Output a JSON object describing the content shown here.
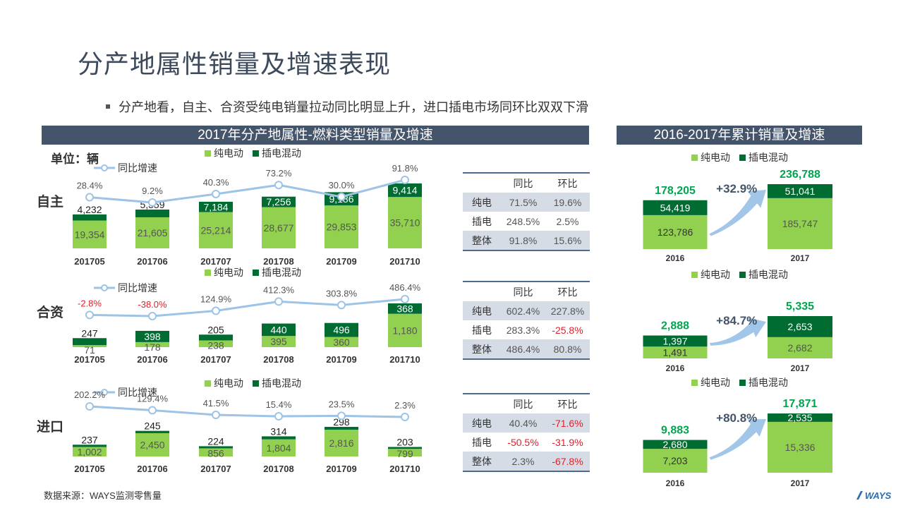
{
  "title": "分产地属性销量及增速表现",
  "bullet": "分产地看，自主、合资受纯电销量拉动同比明显上升，进口插电市场同环比双双下滑",
  "left_header": "2017年分产地属性-燃料类型销量及增速",
  "right_header": "2016-2017年累计销量及增速",
  "unit_label": "单位：辆",
  "legend": {
    "bev": "纯电动",
    "phev": "插电混动",
    "yoy": "同比增速"
  },
  "source": "数据来源：WAYS监测零售量",
  "logo": "WAYS",
  "colors": {
    "bev": "#92d050",
    "phev": "#006c31",
    "line": "#9dc3e6",
    "header": "#44546a",
    "growth": "#00a64f",
    "neg": "#e0202a"
  },
  "chart_data": [
    {
      "type": "bar",
      "region": "自主",
      "stacked": true,
      "categories": [
        "201705",
        "201706",
        "201707",
        "201708",
        "201709",
        "201710"
      ],
      "series": [
        {
          "name": "纯电动",
          "values": [
            19354,
            21605,
            25214,
            28677,
            29853,
            35710
          ],
          "labels": [
            "19,354",
            "21,605",
            "25,214",
            "28,677",
            "29,853",
            "35,710"
          ]
        },
        {
          "name": "插电混动",
          "values": [
            4232,
            5359,
            7184,
            7256,
            9186,
            9414
          ],
          "labels": [
            "4,232",
            "5,359",
            "7,184",
            "7,256",
            "9,186",
            "9,414"
          ]
        }
      ],
      "line": {
        "name": "同比增速",
        "values": [
          28.4,
          9.2,
          40.3,
          73.2,
          30.0,
          91.8
        ],
        "labels": [
          "28.4%",
          "9.2%",
          "40.3%",
          "73.2%",
          "30.0%",
          "91.8%"
        ]
      }
    },
    {
      "type": "bar",
      "region": "合资",
      "stacked": true,
      "categories": [
        "201705",
        "201706",
        "201707",
        "201708",
        "201709",
        "201710"
      ],
      "series": [
        {
          "name": "纯电动",
          "values": [
            71,
            178,
            238,
            395,
            360,
            1180
          ],
          "labels": [
            "71",
            "178",
            "238",
            "395",
            "360",
            "1,180"
          ]
        },
        {
          "name": "插电混动",
          "values": [
            247,
            398,
            205,
            440,
            496,
            368
          ],
          "labels": [
            "247",
            "398",
            "205",
            "440",
            "496",
            "368"
          ]
        }
      ],
      "line": {
        "name": "同比增速",
        "values": [
          -2.8,
          -38.0,
          124.9,
          412.3,
          303.8,
          486.4
        ],
        "labels": [
          "-2.8%",
          "-38.0%",
          "124.9%",
          "412.3%",
          "303.8%",
          "486.4%"
        ]
      }
    },
    {
      "type": "bar",
      "region": "进口",
      "stacked": true,
      "categories": [
        "201705",
        "201706",
        "201707",
        "201708",
        "201709",
        "201710"
      ],
      "series": [
        {
          "name": "纯电动",
          "values": [
            1002,
            2450,
            856,
            1804,
            2816,
            799
          ],
          "labels": [
            "1,002",
            "2,450",
            "856",
            "1,804",
            "2,816",
            "799"
          ]
        },
        {
          "name": "插电混动",
          "values": [
            237,
            245,
            224,
            314,
            298,
            203
          ],
          "labels": [
            "237",
            "245",
            "224",
            "314",
            "298",
            "203"
          ]
        }
      ],
      "line": {
        "name": "同比增速",
        "values": [
          202.2,
          129.4,
          41.5,
          15.4,
          23.5,
          2.3
        ],
        "labels": [
          "202.2%",
          "129.4%",
          "41.5%",
          "15.4%",
          "23.5%",
          "2.3%"
        ]
      }
    },
    {
      "type": "bar",
      "region": "自主",
      "stacked": true,
      "categories": [
        "2016",
        "2017"
      ],
      "series": [
        {
          "name": "纯电动",
          "values": [
            123786,
            185747
          ],
          "labels": [
            "123,786",
            "185,747"
          ]
        },
        {
          "name": "插电混动",
          "values": [
            54419,
            51041
          ],
          "labels": [
            "54,419",
            "51,041"
          ]
        }
      ],
      "totals": [
        "178,205",
        "236,788"
      ],
      "growth": "+32.9%"
    },
    {
      "type": "bar",
      "region": "合资",
      "stacked": true,
      "categories": [
        "2016",
        "2017"
      ],
      "series": [
        {
          "name": "纯电动",
          "values": [
            1491,
            2682
          ],
          "labels": [
            "1,491",
            "2,682"
          ]
        },
        {
          "name": "插电混动",
          "values": [
            1397,
            2653
          ],
          "labels": [
            "1,397",
            "2,653"
          ]
        }
      ],
      "totals": [
        "2,888",
        "5,335"
      ],
      "growth": "+84.7%"
    },
    {
      "type": "bar",
      "region": "进口",
      "stacked": true,
      "categories": [
        "2016",
        "2017"
      ],
      "series": [
        {
          "name": "纯电动",
          "values": [
            7203,
            15336
          ],
          "labels": [
            "7,203",
            "15,336"
          ]
        },
        {
          "name": "插电混动",
          "values": [
            2680,
            2535
          ],
          "labels": [
            "2,680",
            "2,535"
          ]
        }
      ],
      "totals": [
        "9,883",
        "17,871"
      ],
      "growth": "+80.8%"
    }
  ],
  "tables": [
    {
      "region": "自主",
      "headers": [
        "同比",
        "环比"
      ],
      "rows": [
        {
          "label": "纯电",
          "yoy": "71.5%",
          "mom": "19.6%"
        },
        {
          "label": "插电",
          "yoy": "248.5%",
          "mom": "2.5%"
        },
        {
          "label": "整体",
          "yoy": "91.8%",
          "mom": "15.6%"
        }
      ]
    },
    {
      "region": "合资",
      "headers": [
        "同比",
        "环比"
      ],
      "rows": [
        {
          "label": "纯电",
          "yoy": "602.4%",
          "mom": "227.8%"
        },
        {
          "label": "插电",
          "yoy": "283.3%",
          "mom": "-25.8%"
        },
        {
          "label": "整体",
          "yoy": "486.4%",
          "mom": "80.8%"
        }
      ]
    },
    {
      "region": "进口",
      "headers": [
        "同比",
        "环比"
      ],
      "rows": [
        {
          "label": "纯电",
          "yoy": "40.4%",
          "mom": "-71.6%"
        },
        {
          "label": "插电",
          "yoy": "-50.5%",
          "mom": "-31.9%"
        },
        {
          "label": "整体",
          "yoy": "2.3%",
          "mom": "-67.8%"
        }
      ]
    }
  ]
}
